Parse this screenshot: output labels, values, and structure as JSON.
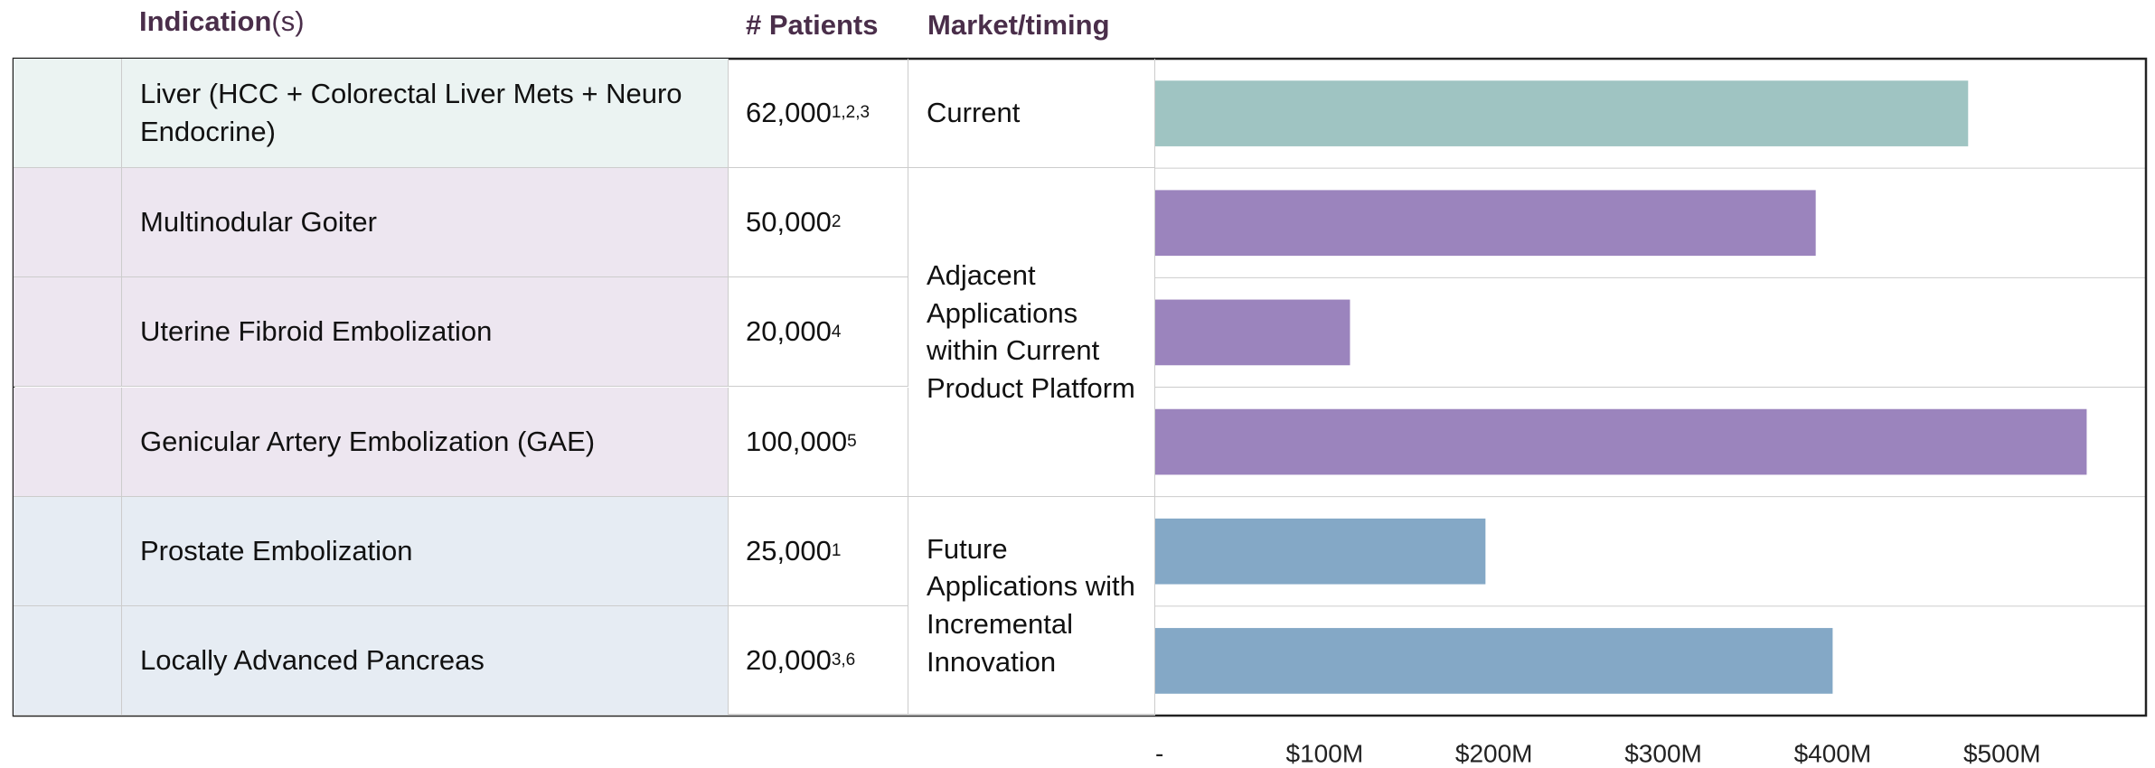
{
  "header": {
    "indication": "Indication",
    "indication_suffix": "(s)",
    "patients": "# Patients",
    "market": "Market/timing"
  },
  "table": {
    "groups": [
      {
        "market": "Current",
        "rows": [
          {
            "name": "Liver (HCC + Colorectal Liver Mets + Neuro Endocrine)",
            "patients": "62,000",
            "notes": "1,2,3"
          }
        ]
      },
      {
        "market": "Adjacent Applications within Current Product Platform",
        "rows": [
          {
            "name": "Multinodular Goiter",
            "patients": "50,000",
            "notes": "2"
          },
          {
            "name": "Uterine Fibroid Embolization",
            "patients": "20,000",
            "notes": "4"
          },
          {
            "name": "Genicular Artery Embolization (GAE)",
            "patients": "100,000",
            "notes": "5"
          }
        ]
      },
      {
        "market": "Future Applications with Incremental Innovation",
        "rows": [
          {
            "name": "Prostate Embolization",
            "patients": "25,000",
            "notes": "1"
          },
          {
            "name": "Locally Advanced Pancreas",
            "patients": "20,000",
            "notes": "3,6"
          }
        ]
      }
    ]
  },
  "chart_data": {
    "type": "bar",
    "orientation": "horizontal",
    "values": [
      480,
      390,
      115,
      550,
      195,
      400
    ],
    "colors": [
      "#9fc4c2",
      "#9b84bd",
      "#9b84bd",
      "#9b84bd",
      "#84a8c6",
      "#84a8c6"
    ],
    "xlim": [
      0,
      585
    ],
    "xticks": [
      {
        "value": 0,
        "label": "-"
      },
      {
        "value": 100,
        "label": "$100M"
      },
      {
        "value": 200,
        "label": "$200M"
      },
      {
        "value": 300,
        "label": "$300M"
      },
      {
        "value": 400,
        "label": "$400M"
      },
      {
        "value": 500,
        "label": "$500M"
      }
    ]
  }
}
